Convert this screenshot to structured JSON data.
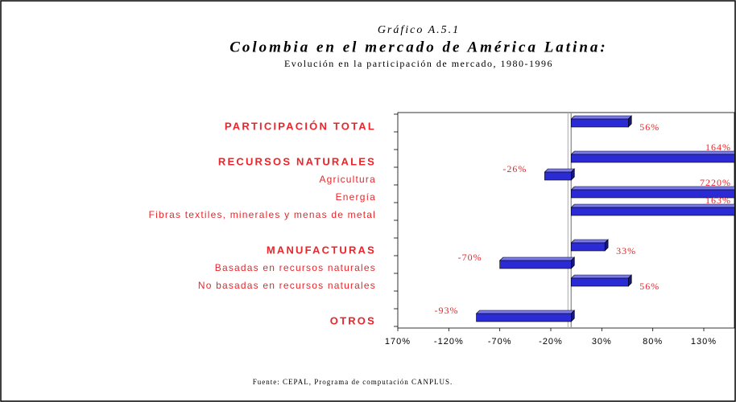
{
  "chart_data": {
    "type": "bar",
    "orientation": "horizontal",
    "label": "Gráfico A.5.1",
    "title": "Colombia en el mercado de América Latina:",
    "subtitle": "Evolución en la participación de mercado, 1980-1996",
    "source": "Fuente: CEPAL, Programa de computación CANPLUS.",
    "categories": [
      "PARTICIPACIÓN TOTAL",
      null,
      "RECURSOS NATURALES",
      "Agricultura",
      "Energía",
      "Fibras textiles, minerales  y menas de metal",
      null,
      "MANUFACTURAS",
      "Basadas en recursos naturales",
      "No basadas en recursos naturales",
      null,
      "OTROS"
    ],
    "values": [
      56,
      null,
      164,
      -26,
      7220,
      163,
      null,
      33,
      -70,
      56,
      null,
      -93
    ],
    "value_labels": [
      "56%",
      null,
      "164%",
      "-26%",
      "7220%",
      "163%",
      null,
      "33%",
      "-70%",
      "56%",
      null,
      "-93%"
    ],
    "color": "#2b2bd6",
    "label_color": "#e8262b",
    "xlim": [
      -170,
      160
    ],
    "xticks": [
      {
        "value": -170,
        "label": "170%"
      },
      {
        "value": -120,
        "label": "-120%"
      },
      {
        "value": -70,
        "label": "-70%"
      },
      {
        "value": -20,
        "label": "-20%"
      },
      {
        "value": 30,
        "label": "30%"
      },
      {
        "value": 80,
        "label": "80%"
      },
      {
        "value": 130,
        "label": "130%"
      }
    ]
  }
}
